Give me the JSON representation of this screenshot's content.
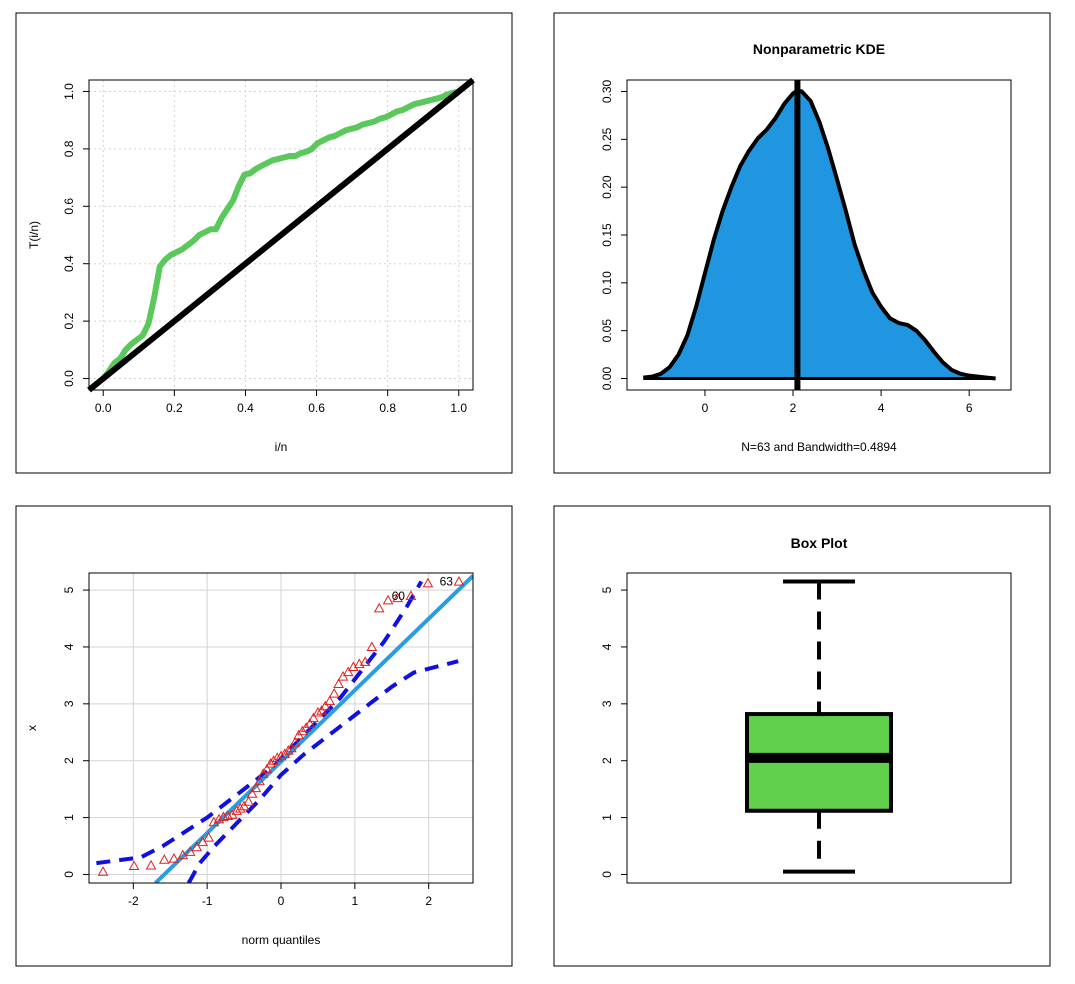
{
  "colors": {
    "tplot_curve": "#5ac85a",
    "diagonal": "#000000",
    "kde_fill": "#2196e0",
    "qq_points": "#e02020",
    "qq_line": "#2a9de0",
    "qq_band": "#1010e0",
    "box_fill": "#60d04a",
    "grid": "#d3d3d3"
  },
  "chart_data": [
    {
      "type": "line",
      "id": "tplot",
      "title": "",
      "xlabel": "i/n",
      "ylabel": "T(i/n)",
      "xlim": [
        -0.04,
        1.04
      ],
      "ylim": [
        -0.04,
        1.04
      ],
      "grid": true,
      "xticks": [
        0.0,
        0.2,
        0.4,
        0.6,
        0.8,
        1.0
      ],
      "xtick_labels": [
        "0.0",
        "0.2",
        "0.4",
        "0.6",
        "0.8",
        "1.0"
      ],
      "yticks": [
        0.0,
        0.2,
        0.4,
        0.6,
        0.8,
        1.0
      ],
      "ytick_labels": [
        "0.0",
        "0.2",
        "0.4",
        "0.6",
        "0.8",
        "1.0"
      ],
      "series": [
        {
          "role": "total-time-on-test",
          "x": [
            0.0,
            0.016,
            0.032,
            0.048,
            0.063,
            0.079,
            0.095,
            0.111,
            0.127,
            0.143,
            0.159,
            0.175,
            0.19,
            0.206,
            0.222,
            0.238,
            0.254,
            0.27,
            0.286,
            0.302,
            0.317,
            0.333,
            0.349,
            0.365,
            0.381,
            0.397,
            0.413,
            0.429,
            0.444,
            0.46,
            0.476,
            0.492,
            0.508,
            0.524,
            0.54,
            0.556,
            0.571,
            0.587,
            0.603,
            0.619,
            0.635,
            0.651,
            0.667,
            0.683,
            0.698,
            0.714,
            0.73,
            0.746,
            0.762,
            0.778,
            0.794,
            0.81,
            0.825,
            0.841,
            0.857,
            0.873,
            0.889,
            0.905,
            0.921,
            0.937,
            0.952,
            0.968,
            0.984,
            1.0
          ],
          "y": [
            0.0,
            0.025,
            0.055,
            0.07,
            0.1,
            0.12,
            0.135,
            0.15,
            0.19,
            0.28,
            0.39,
            0.415,
            0.43,
            0.44,
            0.45,
            0.465,
            0.48,
            0.5,
            0.51,
            0.52,
            0.52,
            0.56,
            0.59,
            0.62,
            0.67,
            0.71,
            0.715,
            0.73,
            0.74,
            0.75,
            0.76,
            0.765,
            0.77,
            0.775,
            0.775,
            0.785,
            0.79,
            0.8,
            0.82,
            0.83,
            0.84,
            0.845,
            0.855,
            0.865,
            0.87,
            0.875,
            0.885,
            0.89,
            0.895,
            0.905,
            0.91,
            0.92,
            0.93,
            0.935,
            0.945,
            0.955,
            0.96,
            0.965,
            0.97,
            0.975,
            0.98,
            0.99,
            0.995,
            1.0
          ]
        },
        {
          "role": "reference-diagonal",
          "x": [
            -0.04,
            1.04
          ],
          "y": [
            -0.04,
            1.04
          ]
        }
      ]
    },
    {
      "type": "area",
      "id": "kde",
      "title": "Nonparametric KDE",
      "xlabel": "N=63 and Bandwidth=0.4894",
      "ylabel": "",
      "xlim": [
        -1.77,
        6.95
      ],
      "ylim": [
        -0.012,
        0.312
      ],
      "grid": false,
      "xticks": [
        0,
        2,
        4,
        6
      ],
      "xtick_labels": [
        "0",
        "2",
        "4",
        "6"
      ],
      "yticks": [
        0.0,
        0.05,
        0.1,
        0.15,
        0.2,
        0.25,
        0.3
      ],
      "ytick_labels": [
        "0.00",
        "0.05",
        "0.10",
        "0.15",
        "0.20",
        "0.25",
        "0.30"
      ],
      "vline_x": 2.1,
      "density": {
        "x": [
          -1.4,
          -1.2,
          -1.0,
          -0.8,
          -0.6,
          -0.4,
          -0.2,
          0.0,
          0.2,
          0.4,
          0.6,
          0.8,
          1.0,
          1.2,
          1.4,
          1.6,
          1.8,
          2.0,
          2.1,
          2.2,
          2.4,
          2.6,
          2.8,
          3.0,
          3.2,
          3.4,
          3.6,
          3.8,
          4.0,
          4.2,
          4.4,
          4.6,
          4.8,
          5.0,
          5.2,
          5.4,
          5.6,
          5.8,
          6.0,
          6.2,
          6.4,
          6.6
        ],
        "y": [
          0.001,
          0.002,
          0.005,
          0.012,
          0.025,
          0.045,
          0.075,
          0.11,
          0.145,
          0.175,
          0.2,
          0.222,
          0.238,
          0.251,
          0.26,
          0.272,
          0.287,
          0.298,
          0.301,
          0.3,
          0.29,
          0.268,
          0.24,
          0.208,
          0.175,
          0.14,
          0.113,
          0.09,
          0.075,
          0.063,
          0.058,
          0.056,
          0.05,
          0.04,
          0.028,
          0.017,
          0.009,
          0.005,
          0.003,
          0.002,
          0.001,
          0.0
        ]
      }
    },
    {
      "type": "scatter",
      "id": "qqplot",
      "title": "",
      "xlabel": "norm quantiles",
      "ylabel": "x",
      "xlim": [
        -2.6,
        2.6
      ],
      "ylim": [
        -0.15,
        5.3
      ],
      "grid": true,
      "xticks": [
        -2,
        -1,
        0,
        1,
        2
      ],
      "xtick_labels": [
        "-2",
        "-1",
        "0",
        "1",
        "2"
      ],
      "yticks": [
        0,
        1,
        2,
        3,
        4,
        5
      ],
      "ytick_labels": [
        "0",
        "1",
        "2",
        "3",
        "4",
        "5"
      ],
      "points": {
        "x": [
          -2.41,
          -1.99,
          -1.76,
          -1.58,
          -1.45,
          -1.33,
          -1.23,
          -1.14,
          -1.06,
          -0.98,
          -0.91,
          -0.84,
          -0.78,
          -0.72,
          -0.66,
          -0.6,
          -0.55,
          -0.5,
          -0.44,
          -0.39,
          -0.34,
          -0.29,
          -0.24,
          -0.19,
          -0.14,
          -0.1,
          -0.05,
          0.0,
          0.05,
          0.1,
          0.14,
          0.19,
          0.24,
          0.29,
          0.34,
          0.39,
          0.44,
          0.5,
          0.55,
          0.6,
          0.66,
          0.72,
          0.78,
          0.84,
          0.91,
          0.98,
          1.06,
          1.14,
          1.23,
          1.33,
          1.45,
          1.58,
          1.76,
          1.99,
          2.41
        ],
        "y": [
          0.05,
          0.15,
          0.16,
          0.26,
          0.28,
          0.34,
          0.4,
          0.48,
          0.57,
          0.65,
          0.92,
          0.97,
          1.01,
          1.03,
          1.05,
          1.12,
          1.16,
          1.2,
          1.28,
          1.42,
          1.52,
          1.64,
          1.77,
          1.85,
          1.95,
          2.0,
          2.05,
          2.08,
          2.12,
          2.18,
          2.22,
          2.32,
          2.45,
          2.52,
          2.58,
          2.65,
          2.75,
          2.85,
          2.88,
          2.96,
          3.05,
          3.18,
          3.35,
          3.48,
          3.56,
          3.65,
          3.7,
          3.74,
          4.0,
          4.68,
          4.82,
          4.86,
          4.9,
          5.12,
          5.15
        ]
      },
      "point_labels": [
        {
          "text": "60",
          "x": 1.76,
          "y": 4.9
        },
        {
          "text": "63",
          "x": 2.41,
          "y": 5.15
        }
      ],
      "ref_line": {
        "x": [
          -1.7,
          2.6
        ],
        "y": [
          -0.15,
          5.25
        ]
      },
      "band_upper": {
        "x": [
          -2.5,
          -2.2,
          -1.9,
          -1.6,
          -1.3,
          -1.0,
          -0.7,
          -0.4,
          -0.1,
          0.2,
          0.5,
          0.8,
          1.1,
          1.4,
          1.7,
          1.9
        ],
        "y": [
          0.2,
          0.25,
          0.3,
          0.5,
          0.75,
          1.0,
          1.3,
          1.6,
          1.9,
          2.3,
          2.7,
          3.1,
          3.6,
          4.1,
          4.7,
          5.15
        ]
      },
      "band_lower": {
        "x": [
          -1.25,
          -1.1,
          -0.9,
          -0.6,
          -0.3,
          0.0,
          0.3,
          0.6,
          0.9,
          1.2,
          1.5,
          1.8,
          2.1,
          2.4
        ],
        "y": [
          -0.15,
          0.2,
          0.5,
          0.9,
          1.3,
          1.75,
          2.1,
          2.4,
          2.7,
          3.0,
          3.3,
          3.55,
          3.65,
          3.75
        ]
      }
    },
    {
      "type": "box",
      "id": "boxplot",
      "title": "Box Plot",
      "xlabel": "",
      "ylabel": "",
      "ylim": [
        -0.15,
        5.3
      ],
      "grid": false,
      "yticks": [
        0,
        1,
        2,
        3,
        4,
        5
      ],
      "ytick_labels": [
        "0",
        "1",
        "2",
        "3",
        "4",
        "5"
      ],
      "box": {
        "min": 0.05,
        "q1": 1.12,
        "median": 2.05,
        "q3": 2.82,
        "max": 5.15
      }
    }
  ]
}
